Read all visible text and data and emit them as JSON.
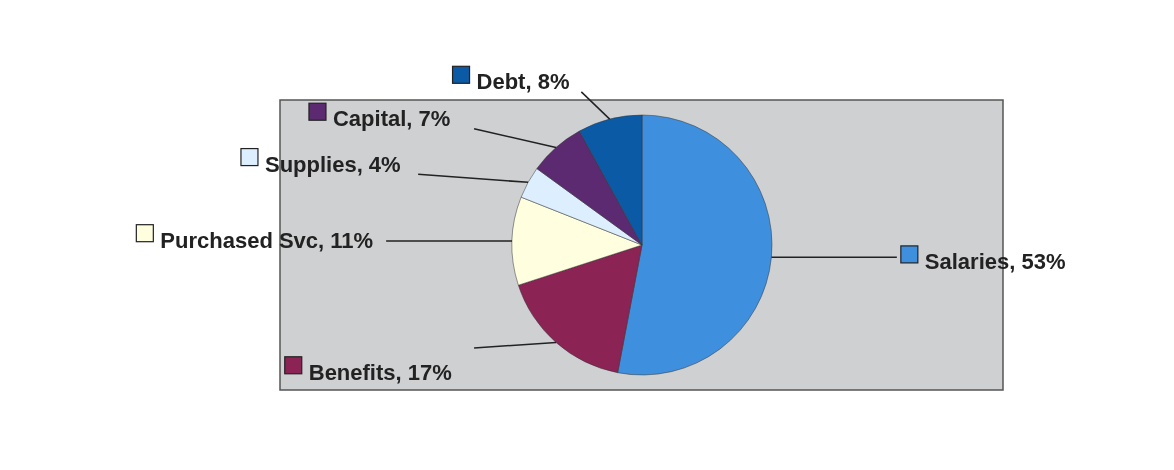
{
  "chart_data": {
    "type": "pie",
    "categories": [
      "Salaries",
      "Benefits",
      "Purchased Svc",
      "Supplies",
      "Capital",
      "Debt"
    ],
    "values": [
      53,
      17,
      11,
      4,
      7,
      8
    ],
    "value_labels": [
      "53%",
      "17%",
      "11%",
      "4%",
      "7%",
      "8%"
    ],
    "legend": "left",
    "colors": [
      "#3f8fdf",
      "#8b2355",
      "#ffffe0",
      "#ddefff",
      "#5b2a70",
      "#0b5aa6"
    ]
  }
}
